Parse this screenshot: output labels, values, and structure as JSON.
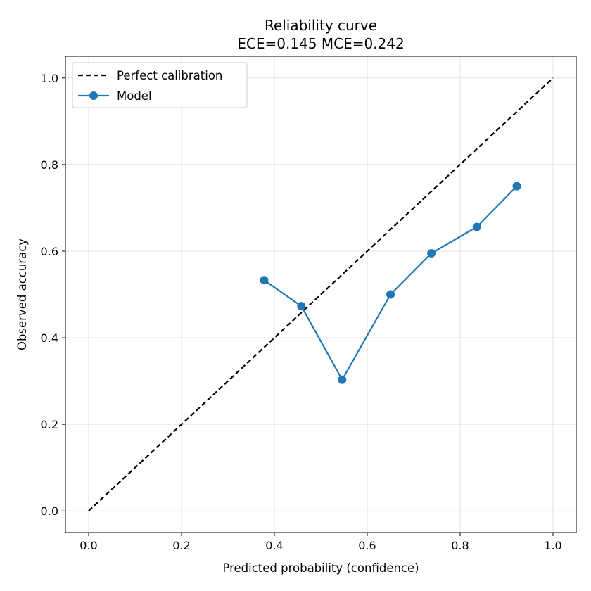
{
  "chart_data": {
    "type": "line",
    "title": "Reliability curve",
    "subtitle": "ECE=0.145  MCE=0.242",
    "xlabel": "Predicted probability (confidence)",
    "ylabel": "Observed accuracy",
    "xlim": [
      -0.05,
      1.05
    ],
    "ylim": [
      -0.05,
      1.05
    ],
    "xticks": [
      0.0,
      0.2,
      0.4,
      0.6,
      0.8,
      1.0
    ],
    "yticks": [
      0.0,
      0.2,
      0.4,
      0.6,
      0.8,
      1.0
    ],
    "xtick_labels": [
      "0.0",
      "0.2",
      "0.4",
      "0.6",
      "0.8",
      "1.0"
    ],
    "ytick_labels": [
      "0.0",
      "0.2",
      "0.4",
      "0.6",
      "0.8",
      "1.0"
    ],
    "grid": true,
    "legend_position": "top-left",
    "series": [
      {
        "name": "Perfect calibration",
        "style": "dashed",
        "color": "#000000",
        "x": [
          0.0,
          1.0
        ],
        "y": [
          0.0,
          1.0
        ]
      },
      {
        "name": "Model",
        "style": "solid-markers",
        "color": "#1f77b4",
        "x": [
          0.378,
          0.458,
          0.546,
          0.65,
          0.738,
          0.836,
          0.922
        ],
        "y": [
          0.533,
          0.473,
          0.303,
          0.5,
          0.595,
          0.656,
          0.75
        ]
      }
    ]
  }
}
